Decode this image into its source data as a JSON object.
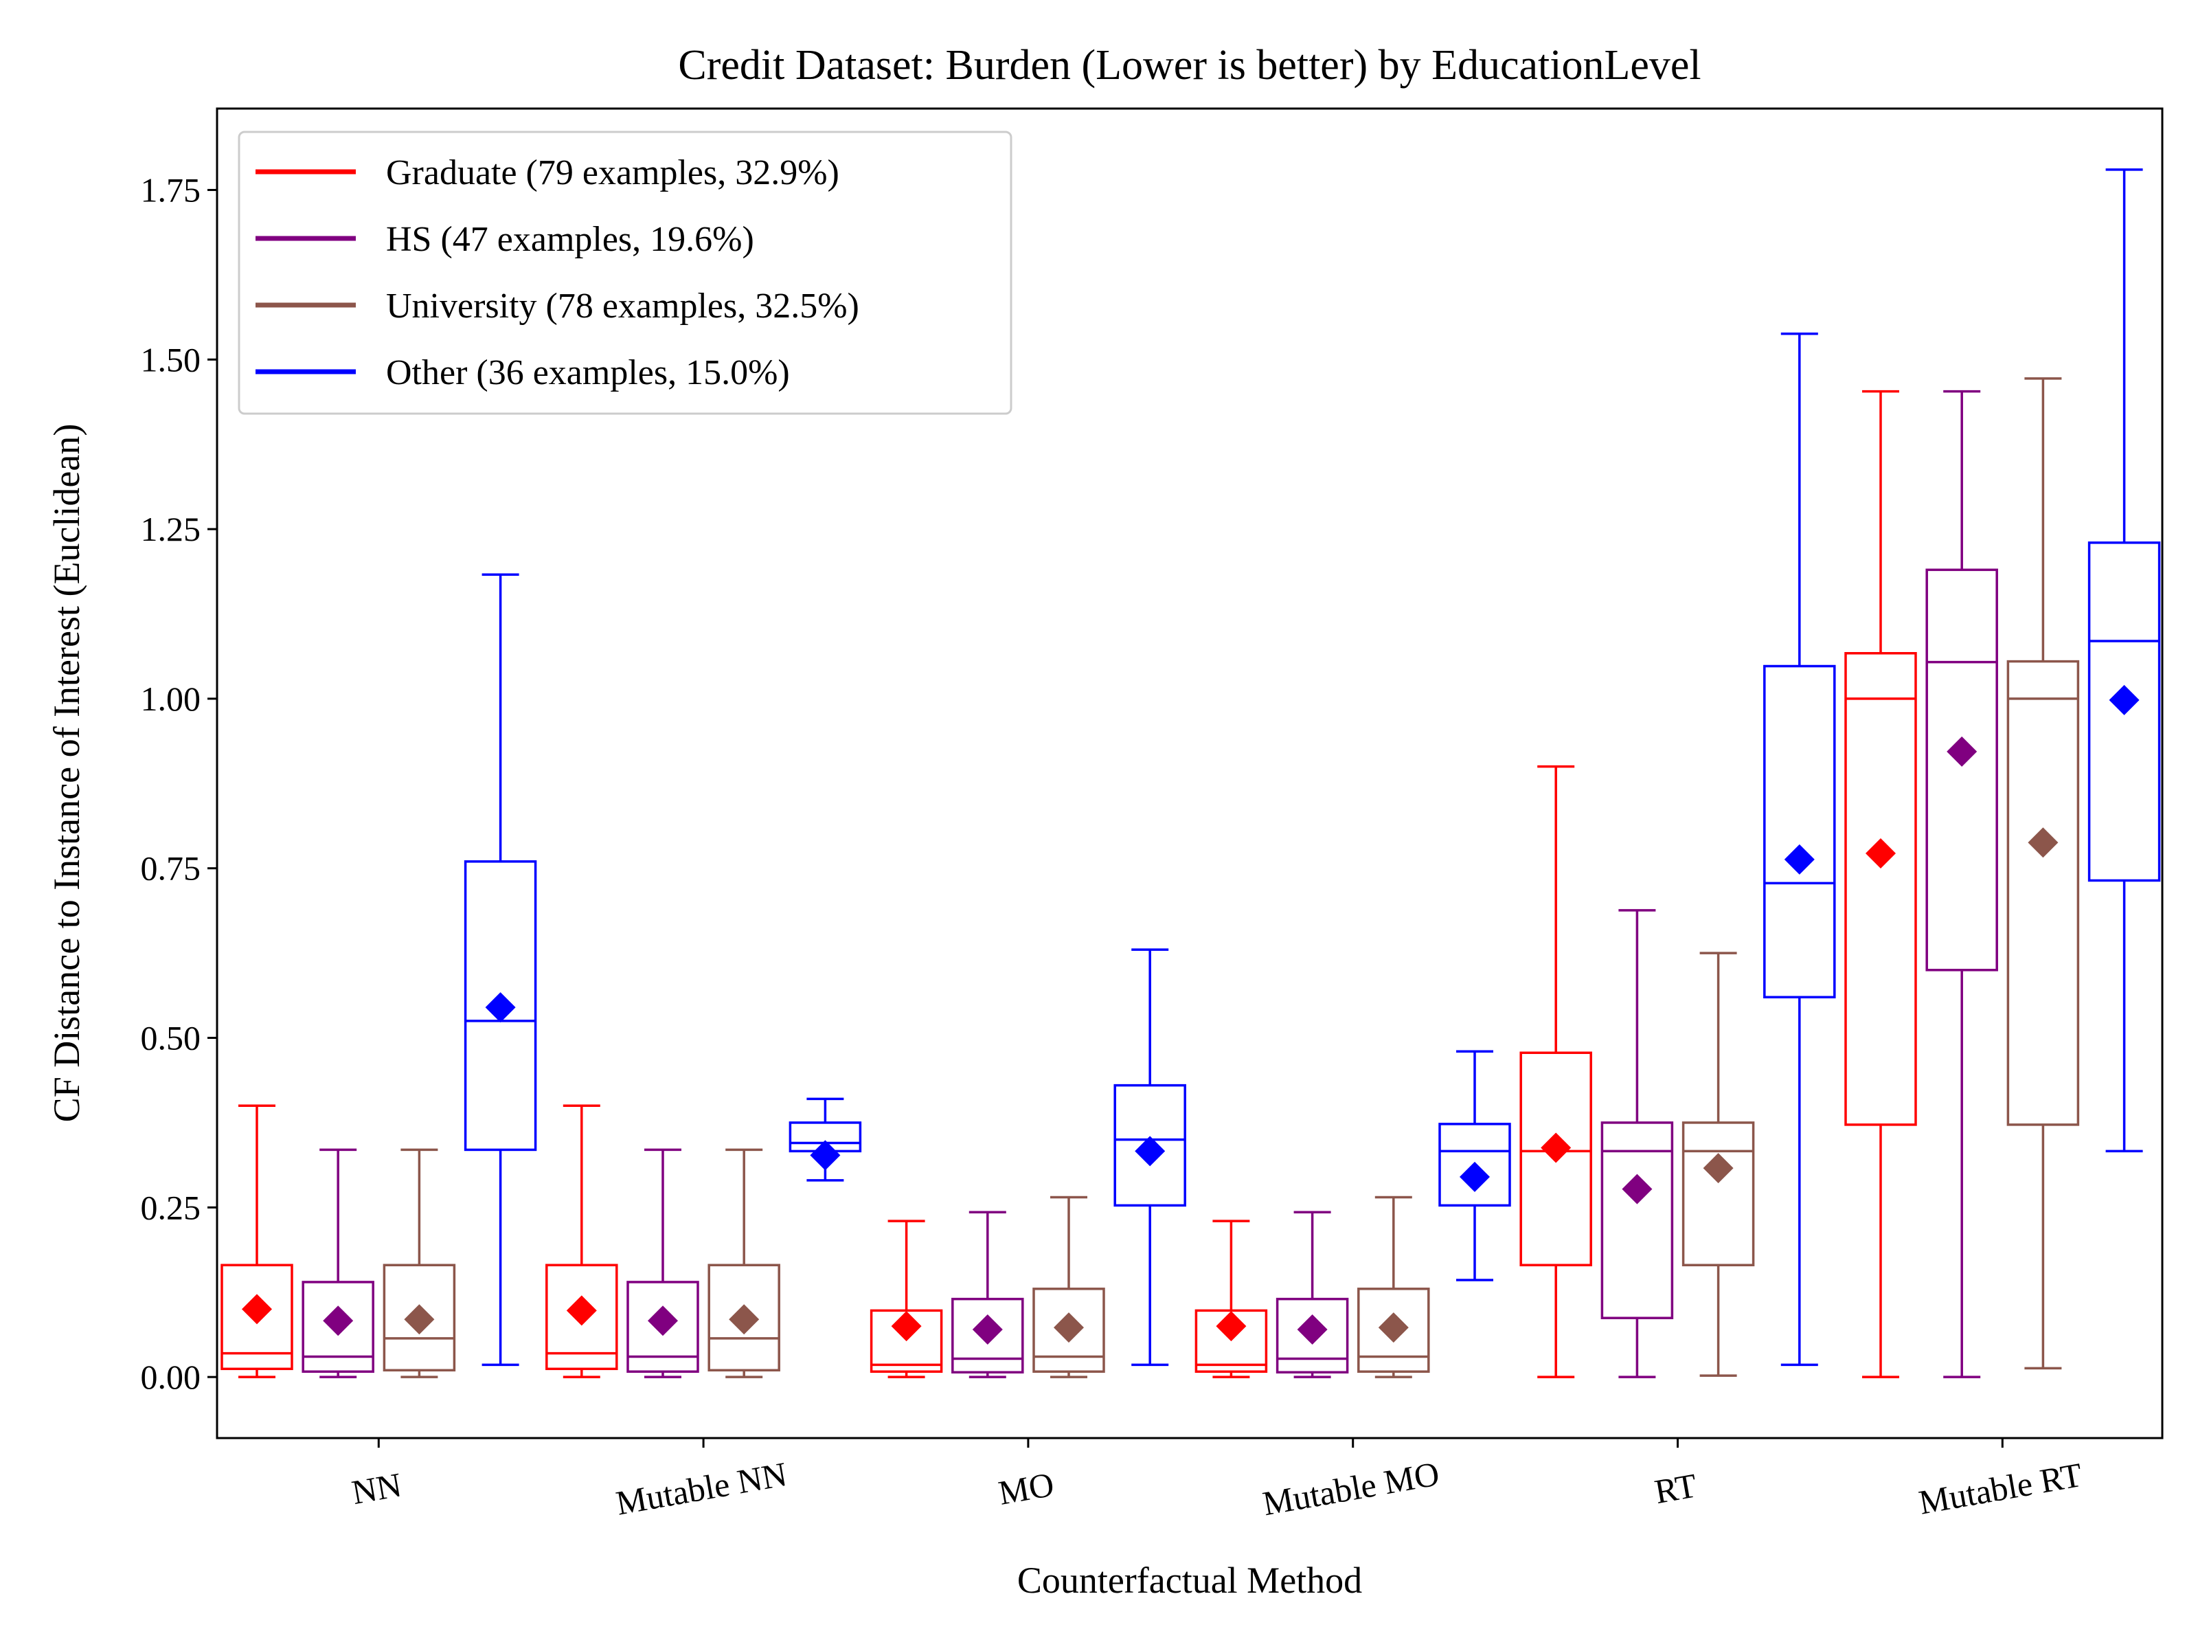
{
  "chart_data": {
    "type": "box",
    "title": "Credit Dataset: Burden (Lower is better) by EducationLevel",
    "xlabel": "Counterfactual Method",
    "ylabel": "CF Distance to Instance of Interest (Euclidean)",
    "ylim": [
      -0.09,
      1.87
    ],
    "yticks": [
      0.0,
      0.25,
      0.5,
      0.75,
      1.0,
      1.25,
      1.5,
      1.75
    ],
    "ytick_labels": [
      "0.00",
      "0.25",
      "0.50",
      "0.75",
      "1.00",
      "1.25",
      "1.50",
      "1.75"
    ],
    "categories": [
      "NN",
      "Mutable NN",
      "MO",
      "Mutable MO",
      "RT",
      "Mutable RT"
    ],
    "legend": {
      "position": "upper left",
      "entries": [
        "Graduate (79 examples, 32.9%)",
        "HS (47 examples, 19.6%)",
        "University (78 examples, 32.5%)",
        "Other (36 examples, 15.0%)"
      ]
    },
    "mean_marker": "diamond",
    "series": [
      {
        "name": "Graduate (79 examples, 32.9%)",
        "color": "#ff0000",
        "boxes": [
          {
            "whislo": 0.0,
            "q1": 0.012,
            "med": 0.035,
            "q3": 0.165,
            "whishi": 0.4,
            "mean": 0.1
          },
          {
            "whislo": 0.0,
            "q1": 0.012,
            "med": 0.035,
            "q3": 0.165,
            "whishi": 0.4,
            "mean": 0.098
          },
          {
            "whislo": 0.0,
            "q1": 0.008,
            "med": 0.018,
            "q3": 0.098,
            "whishi": 0.23,
            "mean": 0.075
          },
          {
            "whislo": 0.0,
            "q1": 0.008,
            "med": 0.018,
            "q3": 0.098,
            "whishi": 0.23,
            "mean": 0.075
          },
          {
            "whislo": 0.0,
            "q1": 0.165,
            "med": 0.333,
            "q3": 0.478,
            "whishi": 0.9,
            "mean": 0.338
          },
          {
            "whislo": 0.0,
            "q1": 0.372,
            "med": 1.0,
            "q3": 1.067,
            "whishi": 1.453,
            "mean": 0.772
          }
        ]
      },
      {
        "name": "HS (47 examples, 19.6%)",
        "color": "#800080",
        "boxes": [
          {
            "whislo": 0.0,
            "q1": 0.008,
            "med": 0.03,
            "q3": 0.14,
            "whishi": 0.335,
            "mean": 0.083
          },
          {
            "whislo": 0.0,
            "q1": 0.008,
            "med": 0.03,
            "q3": 0.14,
            "whishi": 0.335,
            "mean": 0.083
          },
          {
            "whislo": 0.0,
            "q1": 0.007,
            "med": 0.027,
            "q3": 0.115,
            "whishi": 0.243,
            "mean": 0.07
          },
          {
            "whislo": 0.0,
            "q1": 0.007,
            "med": 0.027,
            "q3": 0.115,
            "whishi": 0.243,
            "mean": 0.07
          },
          {
            "whislo": 0.0,
            "q1": 0.087,
            "med": 0.333,
            "q3": 0.375,
            "whishi": 0.688,
            "mean": 0.277
          },
          {
            "whislo": 0.0,
            "q1": 0.6,
            "med": 1.054,
            "q3": 1.19,
            "whishi": 1.453,
            "mean": 0.922
          }
        ]
      },
      {
        "name": "University (78 examples, 32.5%)",
        "color": "#8c564b",
        "boxes": [
          {
            "whislo": 0.0,
            "q1": 0.01,
            "med": 0.057,
            "q3": 0.165,
            "whishi": 0.335,
            "mean": 0.085
          },
          {
            "whislo": 0.0,
            "q1": 0.01,
            "med": 0.057,
            "q3": 0.165,
            "whishi": 0.335,
            "mean": 0.085
          },
          {
            "whislo": 0.0,
            "q1": 0.008,
            "med": 0.03,
            "q3": 0.13,
            "whishi": 0.265,
            "mean": 0.073
          },
          {
            "whislo": 0.0,
            "q1": 0.008,
            "med": 0.03,
            "q3": 0.13,
            "whishi": 0.265,
            "mean": 0.073
          },
          {
            "whislo": 0.002,
            "q1": 0.165,
            "med": 0.333,
            "q3": 0.375,
            "whishi": 0.625,
            "mean": 0.308
          },
          {
            "whislo": 0.013,
            "q1": 0.372,
            "med": 1.0,
            "q3": 1.055,
            "whishi": 1.472,
            "mean": 0.788
          }
        ]
      },
      {
        "name": "Other (36 examples, 15.0%)",
        "color": "#0000ff",
        "boxes": [
          {
            "whislo": 0.018,
            "q1": 0.335,
            "med": 0.525,
            "q3": 0.76,
            "whishi": 1.183,
            "mean": 0.545
          },
          {
            "whislo": 0.29,
            "q1": 0.333,
            "med": 0.345,
            "q3": 0.375,
            "whishi": 0.41,
            "mean": 0.327
          },
          {
            "whislo": 0.018,
            "q1": 0.253,
            "med": 0.35,
            "q3": 0.43,
            "whishi": 0.63,
            "mean": 0.333
          },
          {
            "whislo": 0.143,
            "q1": 0.253,
            "med": 0.333,
            "q3": 0.373,
            "whishi": 0.48,
            "mean": 0.295
          },
          {
            "whislo": 0.018,
            "q1": 0.56,
            "med": 0.728,
            "q3": 1.048,
            "whishi": 1.538,
            "mean": 0.763
          },
          {
            "whislo": 0.333,
            "q1": 0.732,
            "med": 1.085,
            "q3": 1.23,
            "whishi": 1.78,
            "mean": 0.998
          }
        ]
      }
    ]
  }
}
